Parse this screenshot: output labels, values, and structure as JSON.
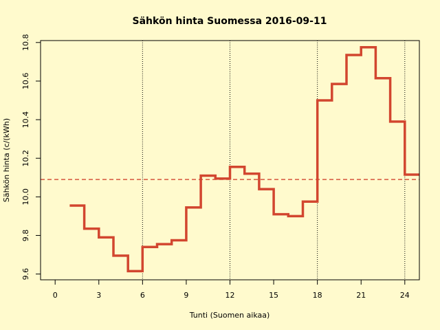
{
  "chart_data": {
    "type": "line",
    "style": "step",
    "title": "Sähkön hinta Suomessa 2016-09-11",
    "xlabel": "Tunti (Suomen aikaa)",
    "ylabel": "Sähkön hinta (c/(kWh)",
    "xlim": [
      -1,
      25
    ],
    "ylim": [
      9.57,
      10.81
    ],
    "xticks": [
      0,
      3,
      6,
      9,
      12,
      15,
      18,
      21,
      24
    ],
    "yticks": [
      9.6,
      9.8,
      10.0,
      10.2,
      10.4,
      10.6,
      10.8
    ],
    "ytick_labels": [
      "9.6",
      "9.8",
      "10.0",
      "10.2",
      "10.4",
      "10.6",
      "10.8"
    ],
    "vlines": [
      6,
      12,
      18,
      24
    ],
    "hline": 10.09,
    "colors": {
      "series": "#d2462f",
      "hline": "#d2462f",
      "grid": "#000000",
      "background": "#fffacd"
    },
    "series": [
      {
        "x": [
          1,
          2,
          3,
          4,
          5,
          6,
          7,
          8,
          9,
          10,
          11,
          12,
          13,
          14,
          15,
          16,
          17,
          18,
          19,
          20,
          21,
          22,
          23,
          24
        ],
        "values": [
          9.955,
          9.835,
          9.79,
          9.695,
          9.615,
          9.74,
          9.755,
          9.775,
          9.945,
          10.11,
          10.095,
          10.155,
          10.12,
          10.04,
          9.91,
          9.9,
          9.975,
          10.5,
          10.585,
          10.735,
          10.775,
          10.615,
          10.39,
          10.115
        ]
      }
    ]
  }
}
